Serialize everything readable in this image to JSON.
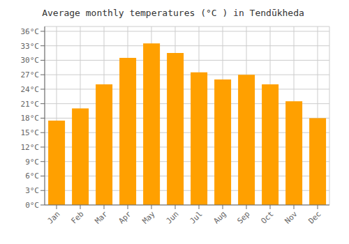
{
  "chart_data": {
    "type": "bar",
    "title": "Average monthly temperatures (°C ) in Tendūkheda",
    "categories": [
      "Jan",
      "Feb",
      "Mar",
      "Apr",
      "May",
      "Jun",
      "Jul",
      "Aug",
      "Sep",
      "Oct",
      "Nov",
      "Dec"
    ],
    "values": [
      17.5,
      20.0,
      25.0,
      30.5,
      33.5,
      31.5,
      27.5,
      26.0,
      27.0,
      25.0,
      21.5,
      18.0
    ],
    "color": "#FFA000",
    "ylim": [
      0,
      37
    ],
    "yticks": [
      {
        "value": 0,
        "label": "0°C"
      },
      {
        "value": 3,
        "label": "3°C"
      },
      {
        "value": 6,
        "label": "6°C"
      },
      {
        "value": 9,
        "label": "9°C"
      },
      {
        "value": 12,
        "label": "12°C"
      },
      {
        "value": 15,
        "label": "15°C"
      },
      {
        "value": 18,
        "label": "18°C"
      },
      {
        "value": 21,
        "label": "21°C"
      },
      {
        "value": 24,
        "label": "24°C"
      },
      {
        "value": 27,
        "label": "27°C"
      },
      {
        "value": 30,
        "label": "30°C"
      },
      {
        "value": 33,
        "label": "33°C"
      },
      {
        "value": 36,
        "label": "36°C"
      }
    ],
    "grid": true
  }
}
